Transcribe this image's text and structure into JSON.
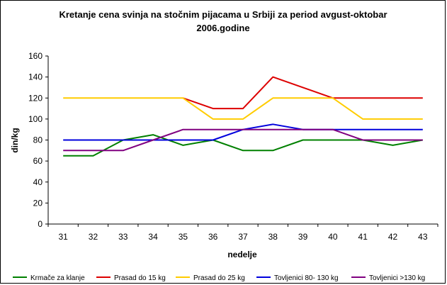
{
  "chart_data": {
    "type": "line",
    "title_lines": [
      "Kretanje cena svinja na stočnim pijacama u Srbiji za period avgust-oktobar",
      "2006.godine"
    ],
    "xlabel": "nedelje",
    "ylabel": "din/kg",
    "categories": [
      "31",
      "32",
      "33",
      "34",
      "35",
      "36",
      "37",
      "38",
      "39",
      "40",
      "41",
      "42",
      "43"
    ],
    "ylim": [
      0,
      160
    ],
    "yticks": [
      0,
      20,
      40,
      60,
      80,
      100,
      120,
      140,
      160
    ],
    "grid": false,
    "legend_position": "bottom",
    "series": [
      {
        "name": "Krmače za klanje",
        "color": "#008000",
        "values": [
          65,
          65,
          80,
          85,
          75,
          80,
          70,
          70,
          80,
          80,
          80,
          75,
          80
        ]
      },
      {
        "name": "Prasad do 15 kg",
        "color": "#dd0000",
        "values": [
          null,
          null,
          null,
          null,
          120,
          110,
          110,
          140,
          130,
          120,
          120,
          120,
          120
        ]
      },
      {
        "name": "Prasad do 25 kg",
        "color": "#ffcc00",
        "values": [
          120,
          120,
          120,
          120,
          120,
          100,
          100,
          120,
          120,
          120,
          100,
          100,
          100
        ]
      },
      {
        "name": "Tovljenici 80- 130 kg",
        "color": "#0000dd",
        "values": [
          80,
          80,
          80,
          80,
          80,
          80,
          90,
          95,
          90,
          90,
          90,
          90,
          90
        ]
      },
      {
        "name": "Tovljenici >130 kg",
        "color": "#800080",
        "values": [
          70,
          70,
          70,
          80,
          90,
          90,
          90,
          90,
          90,
          90,
          80,
          80,
          80
        ]
      }
    ]
  }
}
